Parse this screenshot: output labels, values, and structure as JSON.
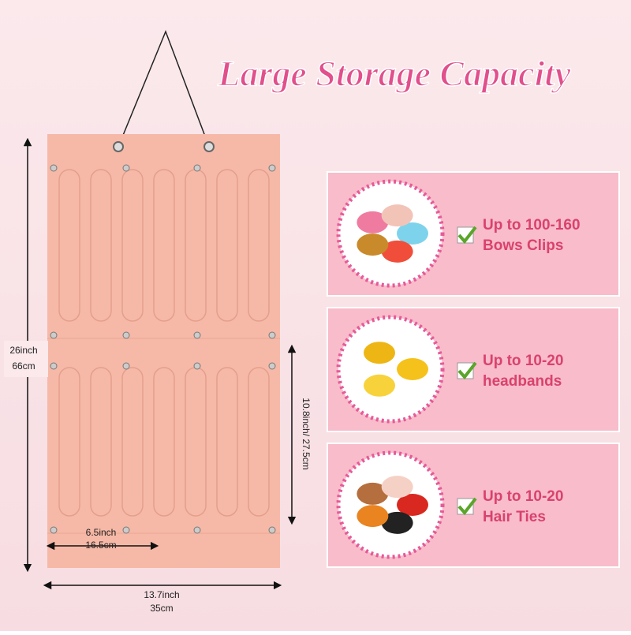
{
  "header": {
    "title": "Large Storage Capacity"
  },
  "dimensions": {
    "height_in": "26inch",
    "height_cm": "66cm",
    "panel": "10.8inch/ 27.5cm",
    "slot_width_in": "6.5inch",
    "slot_width_cm": "16.5cm",
    "width_in": "13.7inch",
    "width_cm": "35cm"
  },
  "features": [
    {
      "line1": "Up to 100-160",
      "line2": "Bows Clips"
    },
    {
      "line1": "Up to 10-20",
      "line2": "headbands"
    },
    {
      "line1": "Up to 10-20",
      "line2": "Hair Ties"
    }
  ]
}
